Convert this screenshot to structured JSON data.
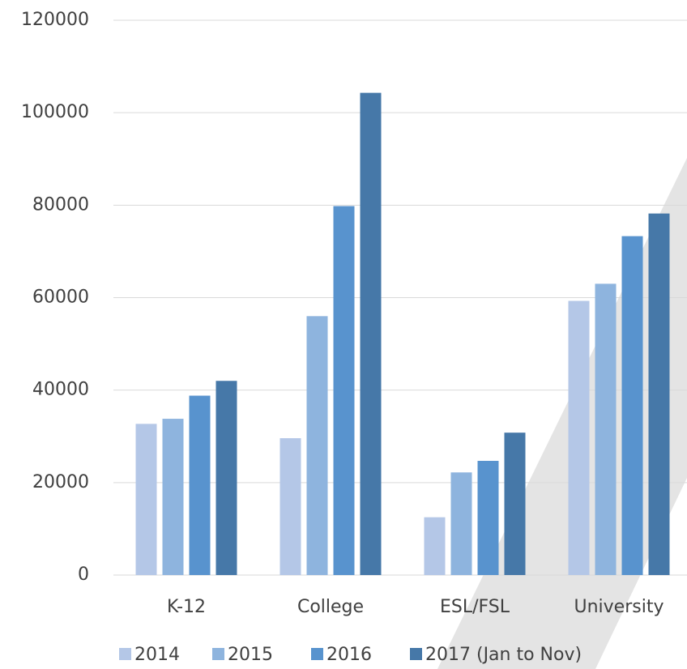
{
  "chart_data": {
    "type": "bar",
    "categories": [
      "K-12",
      "College",
      "ESL/FSL",
      "University"
    ],
    "series": [
      {
        "name": "2014",
        "color": "#b4c7e7",
        "values": [
          32700,
          29600,
          12500,
          59300
        ]
      },
      {
        "name": "2015",
        "color": "#8eb4de",
        "values": [
          33800,
          56000,
          22200,
          63000
        ]
      },
      {
        "name": "2016",
        "color": "#5893ce",
        "values": [
          38800,
          79800,
          24700,
          73300
        ]
      },
      {
        "name": "2017 (Jan to Nov)",
        "color": "#4678a8",
        "values": [
          42000,
          104300,
          30800,
          78200
        ]
      }
    ],
    "ylim": [
      0,
      120000
    ],
    "yticks": [
      0,
      20000,
      40000,
      60000,
      80000,
      100000,
      120000
    ],
    "grid": true,
    "legend": "bottom"
  }
}
